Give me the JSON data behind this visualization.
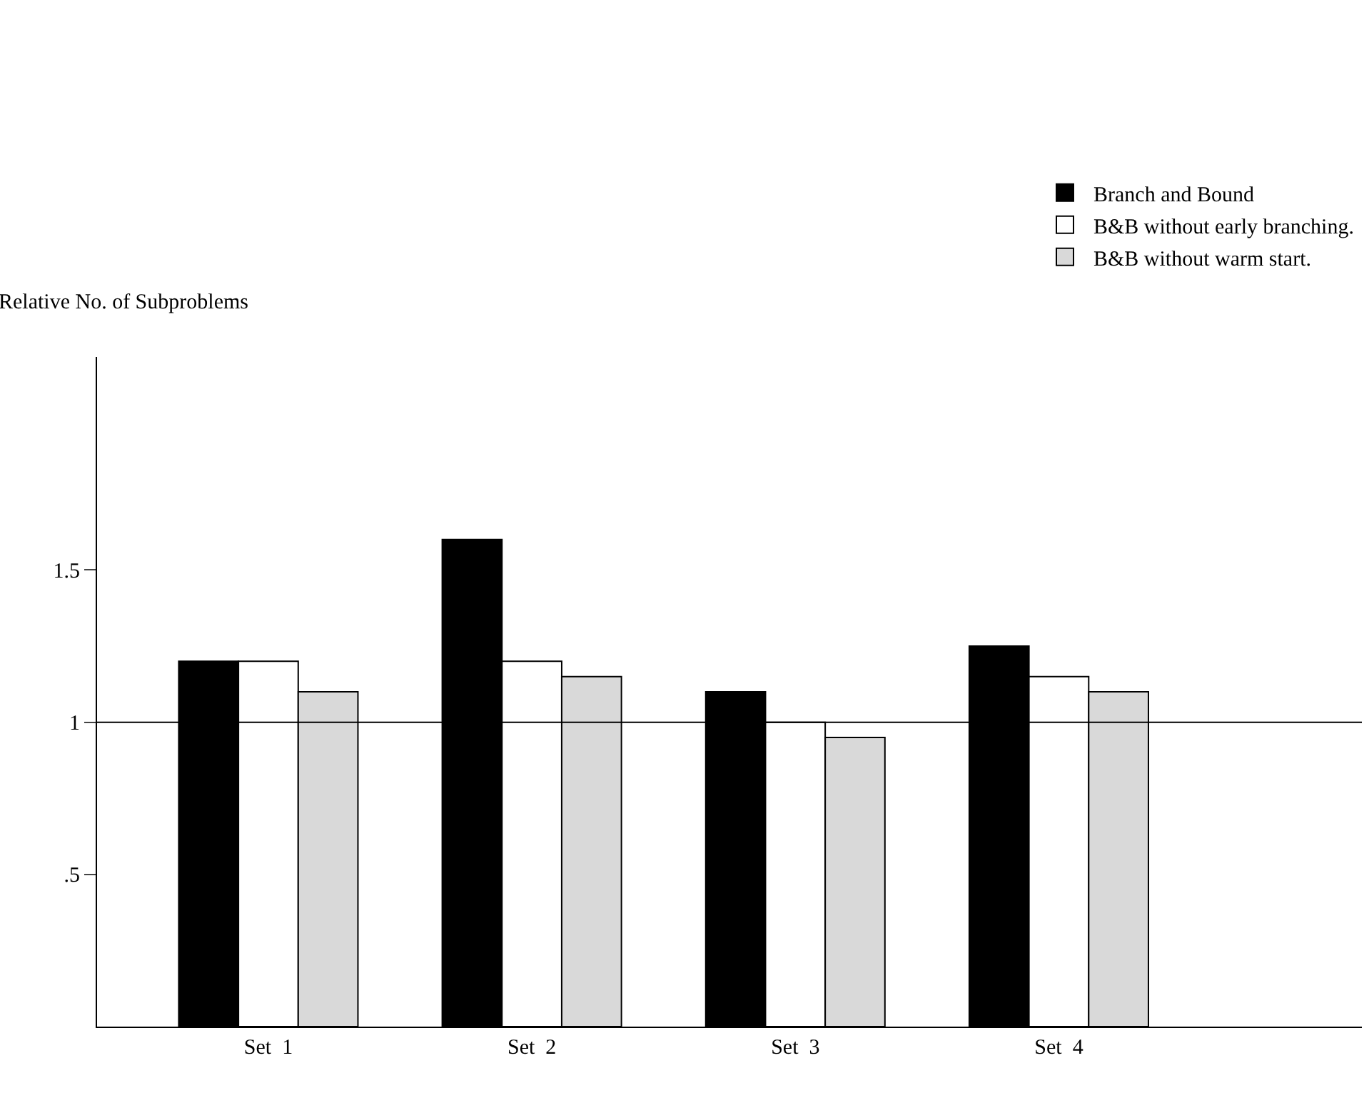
{
  "chart_data": {
    "type": "bar",
    "ylabel": "Relative No. of Subproblems",
    "categories": [
      "Set  1",
      "Set  2",
      "Set  3",
      "Set  4"
    ],
    "series": [
      {
        "name": "Branch and Bound",
        "color": "#000000",
        "values": [
          1.2,
          1.6,
          1.1,
          1.25
        ]
      },
      {
        "name": "B&B without early branching.",
        "color": "#ffffff",
        "values": [
          1.2,
          1.2,
          1.0,
          1.15
        ]
      },
      {
        "name": "B&B without warm start.",
        "color": "#d9d9d9",
        "values": [
          1.1,
          1.15,
          0.95,
          1.1
        ]
      }
    ],
    "ylim": [
      0,
      2.2
    ],
    "yticks": [
      {
        "value": 0.5,
        "label": ".5"
      },
      1,
      1.5
    ],
    "ref_lines": [
      {
        "axis": "y",
        "value": 1,
        "color": "#000000"
      }
    ],
    "grid": false,
    "legend": "top right"
  }
}
